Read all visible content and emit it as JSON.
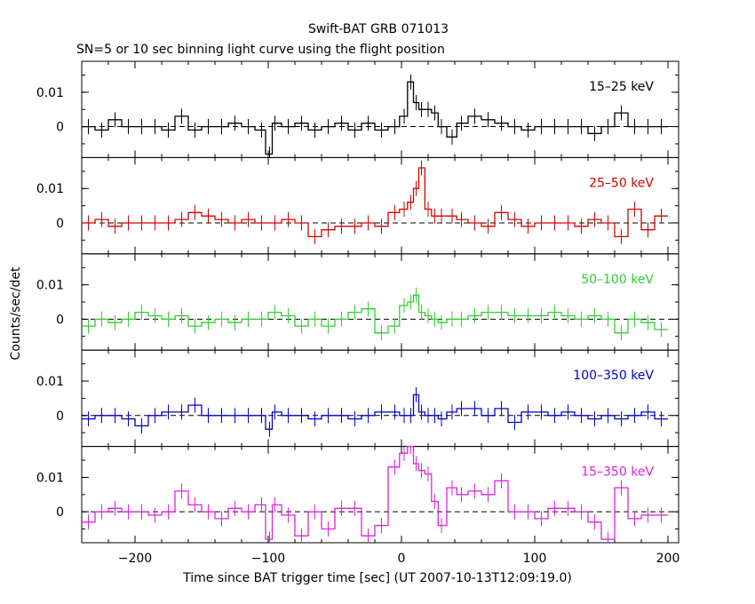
{
  "chart_data": {
    "type": "line",
    "title": "Swift-BAT GRB 071013",
    "subtitle": "SN=5 or 10 sec binning light curve using the flight position",
    "xlabel": "Time since BAT trigger time [sec] (UT 2007-10-13T12:09:19.0)",
    "ylabel": "Counts/sec/det",
    "xlim": [
      -240,
      208
    ],
    "ylim": [
      -0.009,
      0.019
    ],
    "x_ticks": [
      -200,
      -100,
      0,
      100,
      200
    ],
    "y_ticks": [
      0,
      0.01
    ],
    "y_tick_labels": [
      "0",
      "0.01"
    ],
    "x_tick_labels": [
      "−200",
      "−100",
      "0",
      "100",
      "200"
    ],
    "zero_line": "dashed",
    "panels": [
      {
        "label": "15–25 keV",
        "color": "#000000",
        "x": [
          -235,
          -225,
          -215,
          -205,
          -195,
          -185,
          -175,
          -165,
          -155,
          -145,
          -135,
          -125,
          -115,
          -105,
          -99,
          -95,
          -85,
          -75,
          -65,
          -55,
          -45,
          -35,
          -25,
          -15,
          -5,
          2,
          7,
          11,
          15,
          20,
          25,
          30,
          38,
          45,
          55,
          65,
          75,
          85,
          95,
          105,
          115,
          125,
          135,
          145,
          155,
          165,
          175,
          185,
          195
        ],
        "y": [
          0,
          -0.001,
          0.002,
          0,
          0,
          0,
          -0.001,
          0.003,
          -0.001,
          0,
          0,
          0.001,
          0,
          -0.001,
          -0.008,
          0.001,
          0,
          0.001,
          -0.001,
          0,
          0.001,
          -0.001,
          0.001,
          -0.001,
          0,
          0.003,
          0.013,
          0.007,
          0.005,
          0.005,
          0.004,
          0,
          -0.003,
          0.001,
          0.003,
          0.002,
          0.001,
          0,
          -0.001,
          0,
          0,
          0,
          0,
          -0.002,
          0,
          0.004,
          0,
          0,
          0
        ]
      },
      {
        "label": "25–50 keV",
        "color": "#d40000",
        "x": [
          -235,
          -225,
          -215,
          -205,
          -195,
          -185,
          -175,
          -165,
          -155,
          -145,
          -135,
          -125,
          -115,
          -105,
          -95,
          -85,
          -75,
          -65,
          -55,
          -45,
          -35,
          -25,
          -15,
          -5,
          2,
          7,
          11,
          15,
          20,
          25,
          30,
          38,
          45,
          55,
          65,
          75,
          85,
          95,
          105,
          115,
          125,
          135,
          145,
          155,
          165,
          175,
          185,
          195
        ],
        "y": [
          0,
          0.001,
          -0.001,
          0,
          0,
          0,
          0,
          0.001,
          0.003,
          0.002,
          0.001,
          0,
          0.001,
          0,
          0,
          0.001,
          0,
          -0.004,
          -0.002,
          -0.001,
          -0.001,
          0,
          -0.001,
          0.003,
          0.004,
          0.006,
          0.01,
          0.016,
          0.004,
          0.002,
          0.002,
          0.002,
          0.001,
          0,
          -0.001,
          0.003,
          0.001,
          -0.001,
          0,
          0,
          0,
          -0.001,
          0.001,
          0,
          -0.004,
          0.004,
          -0.002,
          0.002
        ]
      },
      {
        "label": "50–100 keV",
        "color": "#33cc33",
        "x": [
          -235,
          -225,
          -215,
          -205,
          -195,
          -185,
          -175,
          -165,
          -155,
          -145,
          -135,
          -125,
          -115,
          -105,
          -95,
          -85,
          -75,
          -65,
          -55,
          -45,
          -35,
          -25,
          -15,
          -5,
          2,
          7,
          11,
          15,
          20,
          25,
          30,
          38,
          45,
          55,
          65,
          75,
          85,
          95,
          105,
          115,
          125,
          135,
          145,
          155,
          165,
          175,
          185,
          195
        ],
        "y": [
          -0.002,
          0,
          -0.001,
          0,
          0.002,
          0.001,
          0,
          0.001,
          -0.002,
          -0.001,
          0,
          -0.001,
          0,
          0,
          0.002,
          0.001,
          -0.002,
          0,
          -0.002,
          0,
          0.002,
          0.003,
          -0.004,
          -0.002,
          0.004,
          0.005,
          0.007,
          0.002,
          0.001,
          0,
          -0.001,
          0,
          0,
          0.001,
          0.002,
          0.002,
          0.001,
          0.001,
          0.001,
          0.002,
          0.001,
          0,
          0.001,
          0,
          -0.004,
          0,
          -0.001,
          -0.003
        ]
      },
      {
        "label": "100–350 keV",
        "color": "#0000cc",
        "x": [
          -235,
          -225,
          -215,
          -205,
          -195,
          -185,
          -175,
          -165,
          -155,
          -145,
          -135,
          -125,
          -115,
          -105,
          -99,
          -95,
          -85,
          -75,
          -65,
          -55,
          -45,
          -35,
          -25,
          -15,
          -5,
          2,
          7,
          11,
          15,
          20,
          25,
          30,
          38,
          45,
          55,
          65,
          75,
          85,
          95,
          105,
          115,
          125,
          135,
          145,
          155,
          165,
          175,
          185,
          195
        ],
        "y": [
          -0.001,
          0,
          0,
          -0.001,
          -0.003,
          0,
          0.001,
          0.001,
          0.003,
          0,
          0,
          0,
          0,
          0,
          -0.004,
          0.001,
          0,
          0,
          -0.001,
          0,
          0,
          -0.001,
          0,
          0.001,
          0.001,
          0,
          0,
          0.006,
          0.001,
          0,
          0,
          -0.001,
          0.001,
          0.002,
          0.002,
          0,
          0.002,
          -0.002,
          0.001,
          0.001,
          0,
          0.001,
          0,
          -0.001,
          0,
          -0.001,
          0,
          0.001,
          -0.001
        ]
      },
      {
        "label": "15–350 keV",
        "color": "#dd22dd",
        "x": [
          -235,
          -225,
          -215,
          -205,
          -195,
          -185,
          -175,
          -165,
          -155,
          -145,
          -135,
          -125,
          -115,
          -105,
          -99,
          -95,
          -85,
          -75,
          -65,
          -55,
          -45,
          -35,
          -25,
          -15,
          -5,
          2,
          7,
          11,
          15,
          20,
          25,
          30,
          38,
          45,
          55,
          65,
          75,
          85,
          95,
          105,
          115,
          125,
          135,
          145,
          155,
          165,
          175,
          185,
          195
        ],
        "y": [
          -0.003,
          0,
          0.001,
          0,
          0,
          -0.001,
          0,
          0.006,
          0.002,
          0,
          -0.002,
          0.001,
          0,
          0.002,
          -0.008,
          0.002,
          -0.001,
          -0.007,
          0,
          -0.005,
          0.001,
          0.001,
          -0.007,
          -0.004,
          0.013,
          0.017,
          0.019,
          0.014,
          0.012,
          0.011,
          0.003,
          -0.004,
          0.007,
          0.005,
          0.006,
          0.005,
          0.009,
          0,
          0,
          -0.002,
          0.001,
          0.001,
          0,
          -0.003,
          -0.008,
          0.007,
          -0.002,
          -0.001,
          -0.001
        ]
      }
    ]
  }
}
